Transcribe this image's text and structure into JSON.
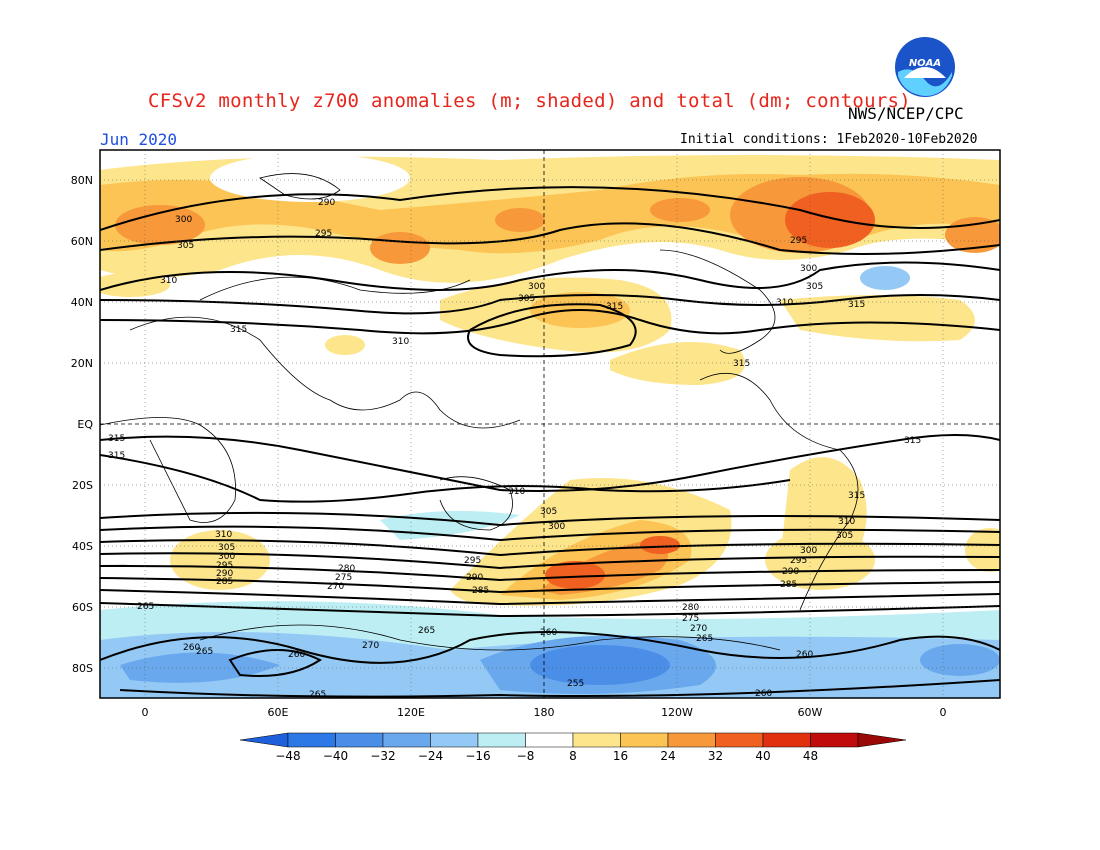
{
  "header": {
    "title": "CFSv2 monthly z700 anomalies (m; shaded) and total (dm; contours)",
    "agency": "NWS/NCEP/CPC",
    "month": "Jun 2020",
    "initial_conditions": "Initial conditions: 1Feb2020-10Feb2020"
  },
  "logo": {
    "text": "NOAA",
    "colors": {
      "outer": "#1a54c8",
      "inner": "#5fd0ff"
    }
  },
  "map": {
    "lat_labels": [
      "80N",
      "60N",
      "40N",
      "20N",
      "EQ",
      "20S",
      "40S",
      "60S",
      "80S"
    ],
    "lon_labels": [
      "0",
      "60E",
      "120E",
      "180",
      "120W",
      "60W",
      "0"
    ],
    "contour_labels": {
      "northern": [
        "290",
        "295",
        "300",
        "305",
        "310",
        "315"
      ],
      "southern": [
        "310",
        "305",
        "300",
        "295",
        "290",
        "285",
        "280",
        "275",
        "270",
        "265",
        "260",
        "255"
      ]
    }
  },
  "colorbar": {
    "ticks": [
      "-48",
      "-40",
      "-32",
      "-24",
      "-16",
      "-8",
      "8",
      "16",
      "24",
      "32",
      "40",
      "48"
    ],
    "colors": [
      "#1e5fdc",
      "#2c78e6",
      "#4a8ee8",
      "#6aa8ee",
      "#93c9f4",
      "#bdeef4",
      "#ffffff",
      "#fde58c",
      "#fbc454",
      "#f7983a",
      "#f06020",
      "#e03010",
      "#c00c0c",
      "#9a0808"
    ]
  }
}
